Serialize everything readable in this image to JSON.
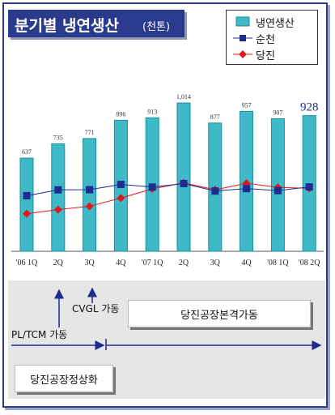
{
  "title": {
    "main": "분기별 냉연생산",
    "unit": "(천톤)"
  },
  "legend": {
    "production_label": "냉연생산",
    "suncheon_label": "순천",
    "dangjin_label": "당진"
  },
  "colors": {
    "bar": "#3fb8c8",
    "bar_edge": "#1e8d9c",
    "suncheon": "#1f2b8f",
    "dangjin": "#e01818",
    "title_bg": "#2a3a8c"
  },
  "chart_data": {
    "type": "bar",
    "categories": [
      "'06 1Q",
      "2Q",
      "3Q",
      "4Q",
      "'07 1Q",
      "2Q",
      "3Q",
      "4Q",
      "'08 1Q",
      "'08 2Q"
    ],
    "series": [
      {
        "name": "냉연생산",
        "type": "bar",
        "values": [
          637,
          735,
          771,
          896,
          913,
          1014,
          877,
          957,
          907,
          928
        ],
        "value_labels": [
          "637",
          "735",
          "771",
          "896",
          "913",
          "1,014",
          "877",
          "957",
          "907",
          "928"
        ]
      },
      {
        "name": "순천",
        "type": "line",
        "values": [
          380,
          420,
          421,
          457,
          439,
          463,
          412,
          429,
          415,
          440
        ]
      },
      {
        "name": "당진",
        "type": "line",
        "values": [
          257,
          285,
          308,
          364,
          427,
          468,
          421,
          465,
          437,
          430
        ]
      }
    ],
    "ylim": [
      0,
      1020
    ],
    "grid": false,
    "legend_position": "top-right"
  },
  "timeline": {
    "pl_tcm": "PL/TCM 가동",
    "cvgl": "CVGL 가동",
    "full_operation": "당진공장본격가동",
    "normalization": "당진공장정상화"
  }
}
